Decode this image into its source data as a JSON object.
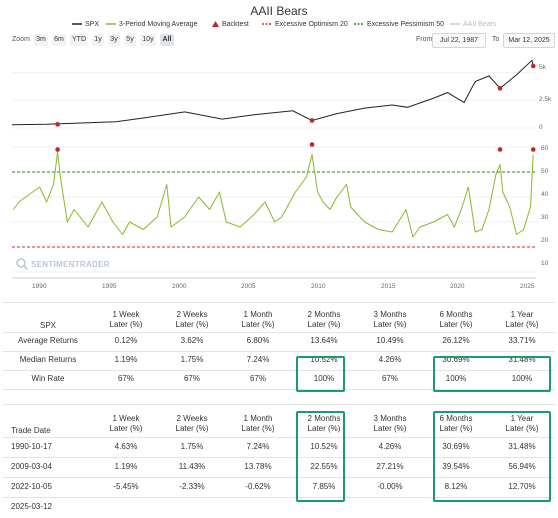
{
  "chart": {
    "title": "AAII Bears",
    "legend": [
      {
        "label": "SPX",
        "color": "#222222",
        "marker": "line"
      },
      {
        "label": "3-Period Moving Average",
        "color": "#8ab82d",
        "marker": "line"
      },
      {
        "label": "Backtest",
        "color": "#c0242a",
        "marker": "triangle"
      },
      {
        "label": "Excessive Optimism 20",
        "color": "#d8282c",
        "marker": "dash"
      },
      {
        "label": "Excessive Pessimism 50",
        "color": "#1d8a2a",
        "marker": "dash"
      },
      {
        "label": "AAII Bears",
        "color": "#cccccc",
        "marker": "line"
      }
    ],
    "zoom_label": "Zoom",
    "zoom_buttons": [
      "3m",
      "6m",
      "YTD",
      "1y",
      "3y",
      "5y",
      "10y",
      "All"
    ],
    "zoom_active": "All",
    "from_label": "From",
    "from_value": "Jul 22, 1987",
    "to_label": "To",
    "to_value": "Mar 12, 2025",
    "spx_axis": [
      "5k",
      "2.5k",
      "0"
    ],
    "bears_axis": [
      "60",
      "50",
      "40",
      "30",
      "20",
      "10"
    ],
    "x_axis": [
      "1990",
      "1995",
      "2000",
      "2005",
      "2010",
      "2015",
      "2020",
      "2025"
    ],
    "watermark": "SENTIMENTRADER"
  },
  "chart_data": [
    {
      "type": "line",
      "name": "SPX",
      "x": [
        1987.5,
        1990,
        1992,
        1995,
        1997,
        2000,
        2002.7,
        2005,
        2007.8,
        2009.2,
        2011,
        2013,
        2015,
        2016.1,
        2018,
        2019,
        2020.2,
        2021,
        2022,
        2022.8,
        2024,
        2025.1,
        2025.2
      ],
      "y": [
        300,
        330,
        420,
        560,
        900,
        1450,
        800,
        1200,
        1550,
        680,
        1300,
        1800,
        2080,
        1870,
        2700,
        3200,
        2300,
        4200,
        4700,
        3580,
        4800,
        6100,
        5600
      ],
      "ylim": [
        0,
        6500
      ]
    },
    {
      "type": "line",
      "name": "3-Period Moving Average",
      "x": [
        1987.6,
        1988,
        1988.5,
        1989,
        1989.5,
        1990,
        1990.5,
        1990.8,
        1991,
        1991.5,
        1992,
        1993,
        1994,
        1994.8,
        1995.5,
        1996,
        1997,
        1998,
        1998.7,
        1999,
        2000,
        2001,
        2001.8,
        2002.5,
        2003,
        2004,
        2005,
        2005.8,
        2006.5,
        2007,
        2008,
        2008.8,
        2009.2,
        2009.6,
        2010,
        2010.5,
        2011,
        2011.7,
        2012,
        2013,
        2014,
        2015,
        2016,
        2016.5,
        2017,
        2018,
        2019,
        2019.5,
        2020,
        2020.5,
        2021,
        2021.5,
        2022,
        2022.5,
        2022.8,
        2023,
        2023.5,
        2024,
        2024.5,
        2025,
        2025.2
      ],
      "y": [
        35,
        38,
        40,
        42,
        44,
        38,
        45,
        58,
        48,
        30,
        35,
        28,
        38,
        30,
        25,
        30,
        27,
        32,
        45,
        28,
        32,
        40,
        35,
        42,
        30,
        28,
        33,
        38,
        30,
        32,
        42,
        48,
        57,
        42,
        38,
        35,
        40,
        45,
        36,
        30,
        27,
        26,
        35,
        24,
        28,
        30,
        33,
        28,
        35,
        44,
        26,
        27,
        35,
        49,
        53,
        42,
        36,
        25,
        27,
        36,
        57
      ],
      "ylim": [
        10,
        62
      ]
    },
    {
      "type": "scatter",
      "name": "Backtest",
      "x": [
        1990.8,
        2009.2,
        2022.8,
        2025.2
      ],
      "y": [
        59,
        61,
        59,
        59
      ],
      "spx_y": [
        330,
        680,
        3580,
        5600
      ]
    }
  ],
  "tables": {
    "summary": {
      "columns": [
        "SPX",
        "1 Week\nLater (%)",
        "2 Weeks\nLater (%)",
        "1 Month\nLater (%)",
        "2 Months\nLater (%)",
        "3 Months\nLater (%)",
        "6 Months\nLater (%)",
        "1 Year\nLater (%)"
      ],
      "rows": [
        [
          "Average Returns",
          "0.12%",
          "3.62%",
          "6.80%",
          "13.64%",
          "10.49%",
          "26.12%",
          "33.71%"
        ],
        [
          "Median Returns",
          "1.19%",
          "1.75%",
          "7.24%",
          "10.52%",
          "4.26%",
          "30.69%",
          "31.48%"
        ],
        [
          "Win Rate",
          "67%",
          "67%",
          "67%",
          "100%",
          "67%",
          "100%",
          "100%"
        ]
      ]
    },
    "trades": {
      "columns": [
        "Trade Date",
        "1 Week\nLater (%)",
        "2 Weeks\nLater (%)",
        "1 Month\nLater (%)",
        "2 Months\nLater (%)",
        "3 Months\nLater (%)",
        "6 Months\nLater (%)",
        "1 Year\nLater (%)"
      ],
      "rows": [
        [
          "1990-10-17",
          "4.63%",
          "1.75%",
          "7.24%",
          "10.52%",
          "4.26%",
          "30.69%",
          "31.48%"
        ],
        [
          "2009-03-04",
          "1.19%",
          "11.43%",
          "13.78%",
          "22.55%",
          "27.21%",
          "39.54%",
          "56.94%"
        ],
        [
          "2022-10-05",
          "-5.45%",
          "-2.33%",
          "-0.62%",
          "7.85%",
          "-0.00%",
          "8.12%",
          "12.70%"
        ],
        [
          "2025-03-12",
          "",
          "",
          "",
          "",
          "",
          "",
          ""
        ]
      ]
    }
  }
}
